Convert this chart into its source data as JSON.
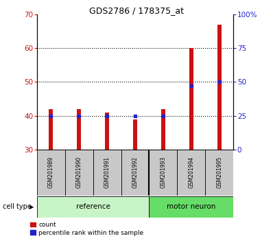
{
  "title": "GDS2786 / 178375_at",
  "samples": [
    "GSM201989",
    "GSM201990",
    "GSM201991",
    "GSM201992",
    "GSM201993",
    "GSM201994",
    "GSM201995"
  ],
  "count_values": [
    42,
    42,
    41,
    39,
    42,
    60,
    67
  ],
  "percentile_values": [
    25,
    25,
    25,
    25,
    25,
    47,
    50
  ],
  "ylim_left": [
    30,
    70
  ],
  "ylim_right": [
    0,
    100
  ],
  "yticks_left": [
    30,
    40,
    50,
    60,
    70
  ],
  "yticks_right": [
    0,
    25,
    50,
    75,
    100
  ],
  "ytick_labels_right": [
    "0",
    "25",
    "50",
    "75",
    "100%"
  ],
  "bar_bottom": 30,
  "bar_color": "#cc1111",
  "marker_color": "#2222cc",
  "bg_plot": "#ffffff",
  "bg_xlabel": "#c8c8c8",
  "bg_reference": "#c8f5c8",
  "bg_motor": "#66dd66",
  "reference_label": "reference",
  "motor_label": "motor neuron",
  "cell_type_label": "cell type",
  "legend_count": "count",
  "legend_percentile": "percentile rank within the sample",
  "reference_indices": [
    0,
    1,
    2,
    3
  ],
  "motor_indices": [
    4,
    5,
    6
  ],
  "left_axis_color": "#cc1111",
  "right_axis_color": "#2222cc",
  "bar_width": 0.15,
  "marker_size": 3
}
